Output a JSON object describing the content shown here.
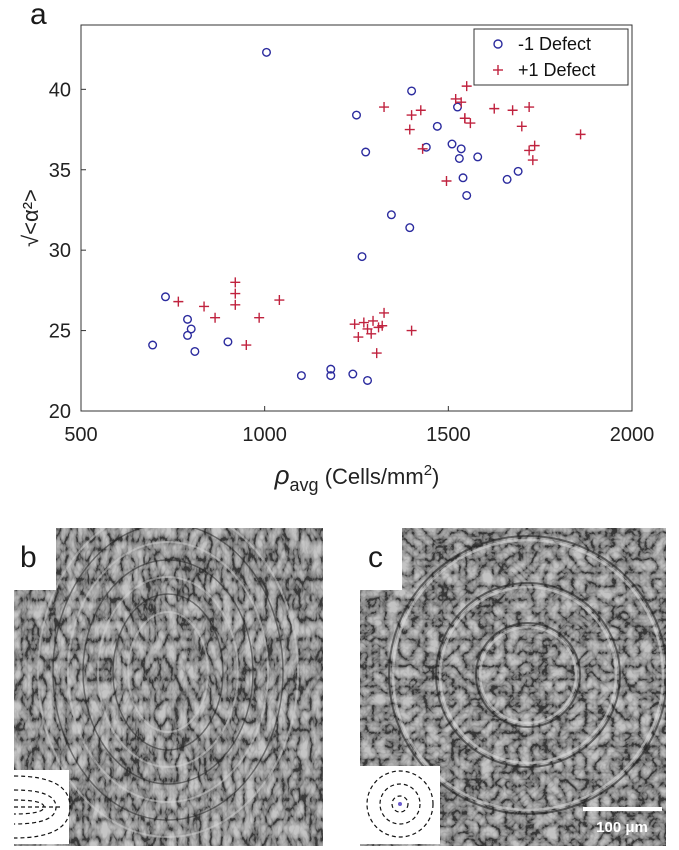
{
  "panels": {
    "a": "a",
    "b": "b",
    "c": "c"
  },
  "chart_data": {
    "type": "scatter",
    "title": "",
    "xlabel": {
      "main": "ρ",
      "sub": "avg",
      "tail": " (Cells/mm",
      "sup": "2",
      "end": ")"
    },
    "ylabel": "√<α²>",
    "xlim": [
      500,
      2000
    ],
    "ylim": [
      20,
      44
    ],
    "xticks": [
      500,
      1000,
      1500,
      2000
    ],
    "yticks": [
      20,
      25,
      30,
      35,
      40
    ],
    "grid": false,
    "legend_position": "top-right",
    "series": [
      {
        "name": "-1 Defect",
        "marker": "circle",
        "color": "#2b2b9e",
        "x": [
          1005,
          695,
          730,
          790,
          800,
          790,
          810,
          900,
          1100,
          1180,
          1180,
          1240,
          1280,
          1250,
          1275,
          1265,
          1345,
          1395,
          1400,
          1440,
          1470,
          1510,
          1525,
          1535,
          1530,
          1540,
          1550,
          1580,
          1660,
          1690
        ],
        "y": [
          42.3,
          24.1,
          27.1,
          25.7,
          25.1,
          24.7,
          23.7,
          24.3,
          22.2,
          22.2,
          22.6,
          22.3,
          21.9,
          38.4,
          36.1,
          29.6,
          32.2,
          31.4,
          39.9,
          36.4,
          37.7,
          36.6,
          38.9,
          36.3,
          35.7,
          34.5,
          33.4,
          35.8,
          34.4,
          34.9
        ]
      },
      {
        "name": "+1 Defect",
        "marker": "plus",
        "color": "#c0223e",
        "x": [
          765,
          835,
          865,
          920,
          920,
          920,
          950,
          985,
          1040,
          1245,
          1255,
          1270,
          1280,
          1290,
          1295,
          1305,
          1310,
          1320,
          1325,
          1400,
          1325,
          1395,
          1400,
          1425,
          1430,
          1495,
          1520,
          1535,
          1545,
          1550,
          1560,
          1545,
          1625,
          1675,
          1700,
          1720,
          1720,
          1730,
          1735,
          1860
        ],
        "y": [
          26.8,
          26.5,
          25.8,
          28.0,
          27.3,
          26.6,
          24.1,
          25.8,
          26.9,
          25.4,
          24.6,
          25.5,
          25.1,
          24.8,
          25.6,
          23.6,
          25.2,
          25.3,
          26.1,
          25.0,
          38.9,
          37.5,
          38.4,
          38.7,
          36.3,
          34.3,
          39.4,
          39.2,
          38.2,
          40.2,
          37.9,
          38.2,
          38.8,
          38.7,
          37.7,
          38.9,
          36.2,
          35.6,
          36.5,
          37.2
        ]
      }
    ]
  },
  "micrographs": {
    "scale_bar_label": "100 μm"
  }
}
